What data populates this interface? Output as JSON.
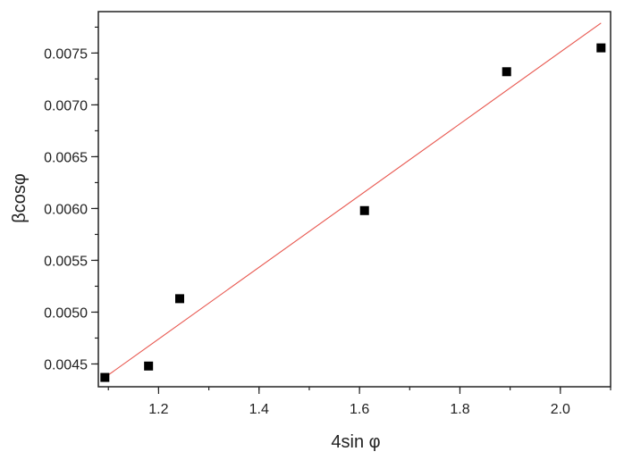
{
  "chart_data": {
    "type": "scatter",
    "xlabel": "4sin φ",
    "ylabel": "βcosφ",
    "xlim": [
      1.08,
      2.1
    ],
    "ylim": [
      0.00428,
      0.0079
    ],
    "x_ticks": [
      1.2,
      1.4,
      1.6,
      1.8,
      2.0
    ],
    "x_tick_labels": [
      "1.2",
      "1.4",
      "1.6",
      "1.8",
      "2.0"
    ],
    "y_ticks": [
      0.0045,
      0.005,
      0.0055,
      0.006,
      0.0065,
      0.007,
      0.0075
    ],
    "y_tick_labels": [
      "0.0045",
      "0.0050",
      "0.0055",
      "0.0060",
      "0.0065",
      "0.0070",
      "0.0075"
    ],
    "grid": false,
    "series": [
      {
        "marker": "square",
        "color": "#000000",
        "x": [
          1.093,
          1.18,
          1.242,
          1.61,
          1.893,
          2.081
        ],
        "y": [
          0.00437,
          0.00448,
          0.00513,
          0.00598,
          0.00732,
          0.00755
        ]
      }
    ],
    "fit_line": {
      "color": "#e8574f",
      "x": [
        1.093,
        2.081
      ],
      "y": [
        0.00437,
        0.00779
      ]
    }
  }
}
